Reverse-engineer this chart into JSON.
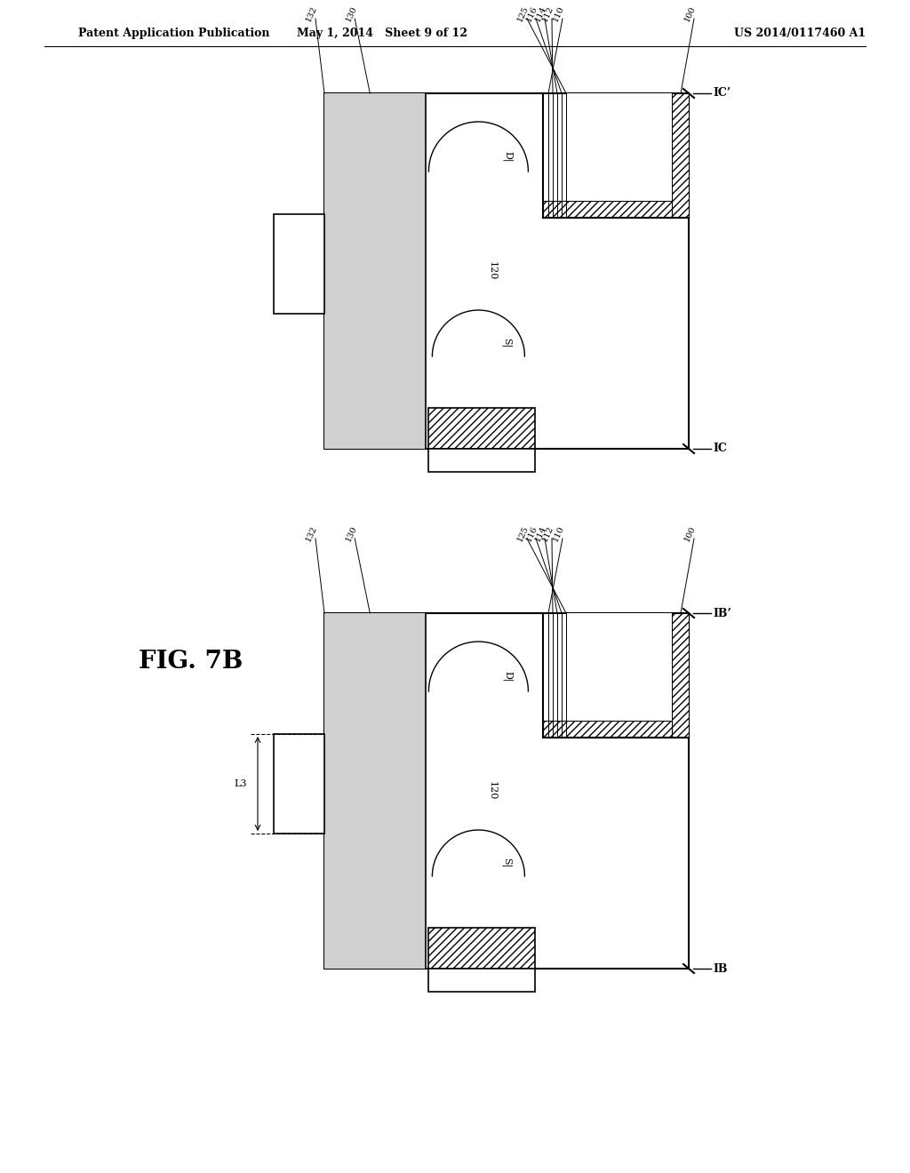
{
  "bg_color": "#ffffff",
  "header_left": "Patent Application Publication",
  "header_mid": "May 1, 2014   Sheet 9 of 12",
  "header_right": "US 2014/0117460 A1",
  "fig_label": "FIG. 7B",
  "line_color": "#000000",
  "top_cut_top": "IC’",
  "top_cut_bot": "IC",
  "bot_cut_top": "IB’",
  "bot_cut_bot": "IB",
  "layers": [
    "132",
    "130",
    "125",
    "116",
    "114",
    "112",
    "110",
    "100"
  ],
  "label_D": "D|",
  "label_S": "S|",
  "label_120": "120",
  "label_L3": "L3"
}
